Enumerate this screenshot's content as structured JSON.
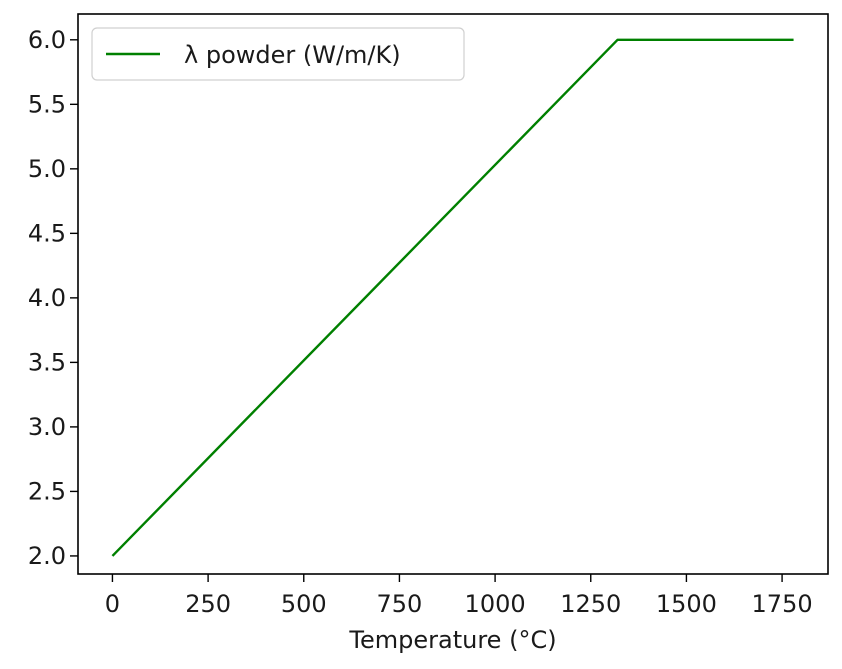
{
  "chart_data": {
    "type": "line",
    "title": "",
    "xlabel": "Temperature (°C)",
    "ylabel": "",
    "xlim": [
      -90,
      1870
    ],
    "ylim": [
      1.86,
      6.2
    ],
    "x_ticks": [
      0,
      250,
      500,
      750,
      1000,
      1250,
      1500,
      1750
    ],
    "y_ticks": [
      2.0,
      2.5,
      3.0,
      3.5,
      4.0,
      4.5,
      5.0,
      5.5,
      6.0
    ],
    "x_tick_labels": [
      "0",
      "250",
      "500",
      "750",
      "1000",
      "1250",
      "1500",
      "1750"
    ],
    "y_tick_labels": [
      "2.0",
      "2.5",
      "3.0",
      "3.5",
      "4.0",
      "4.5",
      "5.0",
      "5.5",
      "6.0"
    ],
    "grid": false,
    "legend_position": "top-left",
    "series": [
      {
        "name": "λ powder (W/m/K)",
        "color": "#008000",
        "x": [
          0,
          1320,
          1780
        ],
        "y": [
          2.0,
          6.0,
          6.0
        ]
      }
    ]
  }
}
